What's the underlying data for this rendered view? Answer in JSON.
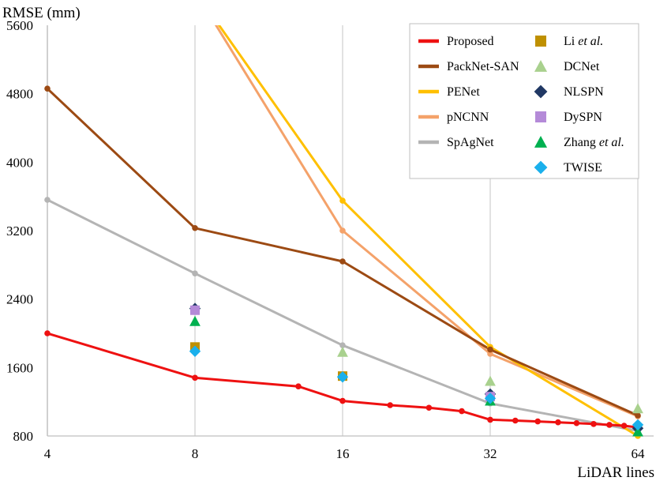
{
  "chart_data": {
    "type": "line",
    "xlabel": "LiDAR lines",
    "ylabel": "RMSE (mm)",
    "x_scale": "log2",
    "xlim": [
      4,
      64
    ],
    "ylim": [
      800,
      5600
    ],
    "x_ticks": [
      "4",
      "8",
      "16",
      "32",
      "64"
    ],
    "y_ticks": [
      "800",
      "1600",
      "2400",
      "3200",
      "4000",
      "4800",
      "5600"
    ],
    "grid": "vertical",
    "legend_position": "top-right",
    "series": [
      {
        "name": "Proposed",
        "kind": "line",
        "color": "#ee1111",
        "x": [
          4,
          8,
          13,
          16,
          20,
          24,
          28,
          32,
          36,
          40,
          44,
          48,
          52,
          56,
          60,
          64
        ],
        "y": [
          2000,
          1480,
          1380,
          1210,
          1160,
          1130,
          1090,
          990,
          980,
          970,
          960,
          950,
          940,
          930,
          920,
          900
        ]
      },
      {
        "name": "PackNet-SAN",
        "kind": "line",
        "color": "#9c4a13",
        "x": [
          4,
          8,
          16,
          32,
          64
        ],
        "y": [
          4860,
          3230,
          2840,
          1810,
          1040
        ]
      },
      {
        "name": "PENet",
        "kind": "line",
        "color": "#ffc000",
        "x": [
          8,
          16,
          32,
          64
        ],
        "y": [
          6000,
          3550,
          1840,
          800
        ]
      },
      {
        "name": "pNCNN",
        "kind": "line",
        "color": "#f4a26a",
        "x": [
          8,
          16,
          32,
          64
        ],
        "y": [
          6000,
          3200,
          1760,
          1030
        ]
      },
      {
        "name": "SpAgNet",
        "kind": "line",
        "color": "#b4b4b4",
        "x": [
          4,
          8,
          16,
          32,
          64
        ],
        "y": [
          3560,
          2700,
          1860,
          1180,
          860
        ]
      },
      {
        "name": "Li et al.",
        "kind": "marker",
        "marker": "square",
        "color": "#bf9000",
        "x": [
          8,
          16
        ],
        "y": [
          1840,
          1500
        ]
      },
      {
        "name": "DCNet",
        "kind": "marker",
        "marker": "triangle",
        "color": "#a9d18e",
        "x": [
          16,
          32,
          64
        ],
        "y": [
          1780,
          1440,
          1120
        ]
      },
      {
        "name": "NLSPN",
        "kind": "marker",
        "marker": "diamond",
        "color": "#203864",
        "x": [
          8,
          32,
          64
        ],
        "y": [
          2290,
          1290,
          890
        ]
      },
      {
        "name": "DySPN",
        "kind": "marker",
        "marker": "square",
        "color": "#b48ad8",
        "x": [
          8,
          32
        ],
        "y": [
          2270,
          1260
        ]
      },
      {
        "name": "Zhang et al.",
        "kind": "marker",
        "marker": "triangle",
        "color": "#00b050",
        "x": [
          8,
          32,
          64
        ],
        "y": [
          2140,
          1210,
          850
        ]
      },
      {
        "name": "TWISE",
        "kind": "marker",
        "marker": "diamond",
        "color": "#1ab0ec",
        "x": [
          8,
          16,
          32,
          64
        ],
        "y": [
          1790,
          1490,
          1240,
          930
        ]
      }
    ]
  },
  "legend": {
    "items": [
      {
        "text": "Proposed"
      },
      {
        "text": "PackNet-SAN"
      },
      {
        "text": "PENet"
      },
      {
        "text": "pNCNN"
      },
      {
        "text": "SpAgNet"
      },
      {
        "text": "Li ",
        "italic": "et al."
      },
      {
        "text": "DCNet"
      },
      {
        "text": "NLSPN"
      },
      {
        "text": "DySPN"
      },
      {
        "text": "Zhang ",
        "italic": "et al."
      },
      {
        "text": "TWISE"
      }
    ]
  }
}
